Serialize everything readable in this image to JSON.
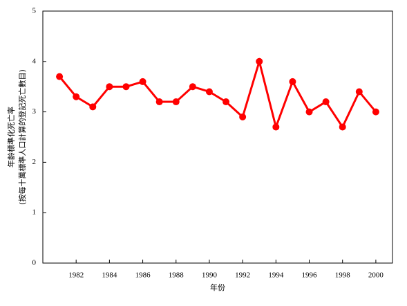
{
  "chart_data": {
    "type": "line",
    "x_label": "年份",
    "y_label": [
      "年齡標準化死亡率",
      "(按每十萬標準人口計算的登記死亡數目)"
    ],
    "x": [
      1981,
      1982,
      1983,
      1984,
      1985,
      1986,
      1987,
      1988,
      1989,
      1990,
      1991,
      1992,
      1993,
      1994,
      1995,
      1996,
      1997,
      1998,
      1999,
      2000
    ],
    "values": [
      3.7,
      3.3,
      3.1,
      3.5,
      3.5,
      3.6,
      3.2,
      3.2,
      3.5,
      3.4,
      3.2,
      2.9,
      4.0,
      2.7,
      3.6,
      3.0,
      3.2,
      2.7,
      3.4,
      3.0
    ],
    "color": "#ff0000",
    "xlim": [
      1980,
      2001
    ],
    "xticks": [
      1982,
      1984,
      1986,
      1988,
      1990,
      1992,
      1994,
      1996,
      1998,
      2000
    ],
    "ylim": [
      0,
      5
    ],
    "yticks": [
      0,
      1,
      2,
      3,
      4,
      5
    ],
    "grid": false
  }
}
